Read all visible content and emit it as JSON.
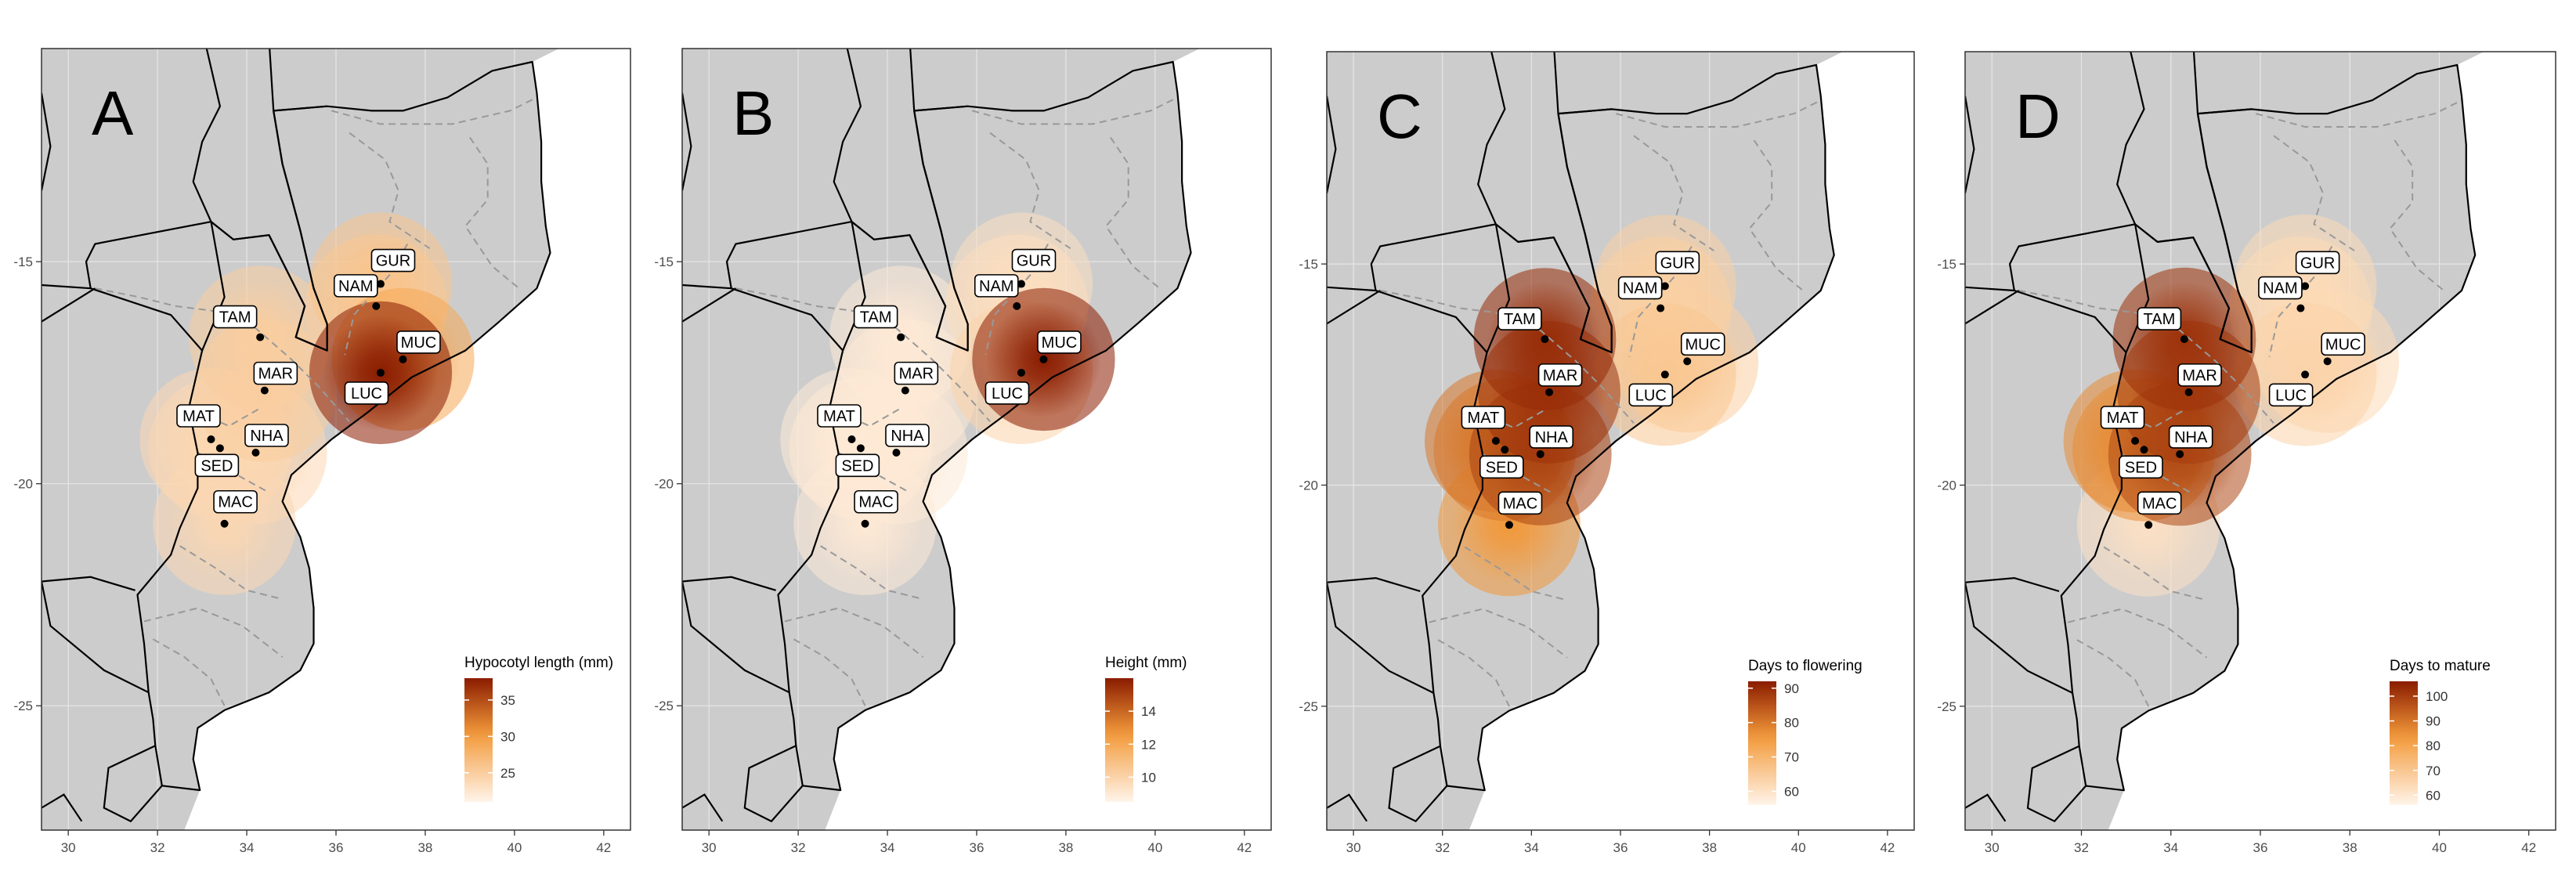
{
  "figure_title": "",
  "axes": {
    "x_ticks": [
      "30",
      "32",
      "34",
      "36",
      "38",
      "40",
      "42"
    ],
    "y_ticks": [
      "-15",
      "-20",
      "-25"
    ],
    "x_values": [
      30,
      32,
      34,
      36,
      38,
      40,
      42
    ],
    "y_values": [
      -15,
      -20,
      -25
    ],
    "lon_range": [
      29.4,
      42.6
    ],
    "lat_range": [
      -27.8,
      -10.2
    ]
  },
  "colors": {
    "land": "#cccccc",
    "border": "#000000",
    "river": "#999999",
    "grid": "#e6e6e6",
    "scale_low": "#fff4ea",
    "scale_mid": "#f39a3a",
    "scale_high": "#8a1c00",
    "site_point": "#000000"
  },
  "sites": [
    {
      "code": "GUR",
      "lon": 37.0,
      "lat": -15.5
    },
    {
      "code": "NAM",
      "lon": 36.9,
      "lat": -16.0
    },
    {
      "code": "TAM",
      "lon": 34.3,
      "lat": -16.7
    },
    {
      "code": "MUC",
      "lon": 37.5,
      "lat": -17.2
    },
    {
      "code": "MAR",
      "lon": 34.4,
      "lat": -17.9
    },
    {
      "code": "LUC",
      "lon": 37.0,
      "lat": -17.5
    },
    {
      "code": "MAT",
      "lon": 33.2,
      "lat": -19.0
    },
    {
      "code": "NHA",
      "lon": 34.2,
      "lat": -19.3
    },
    {
      "code": "SED",
      "lon": 33.4,
      "lat": -19.2
    },
    {
      "code": "MAC",
      "lon": 33.5,
      "lat": -20.9
    }
  ],
  "panels": [
    {
      "letter": "A",
      "legend_title": "Hypocotyl length (mm)",
      "legend_ticks": [
        "35",
        "30",
        "25"
      ],
      "legend_tick_values": [
        35,
        30,
        25
      ],
      "scale_range": [
        21,
        38
      ],
      "site_values": {
        "GUR": 26,
        "NAM": 25,
        "TAM": 25,
        "MUC": 29,
        "MAR": 25,
        "LUC": 38,
        "MAT": 24,
        "NHA": 24,
        "SED": 24,
        "MAC": 24
      }
    },
    {
      "letter": "B",
      "legend_title": "Height (mm)",
      "legend_ticks": [
        "14",
        "12",
        "10"
      ],
      "legend_tick_values": [
        14,
        12,
        10
      ],
      "scale_range": [
        8.5,
        16
      ],
      "site_values": {
        "GUR": 9.5,
        "NAM": 9.5,
        "TAM": 9,
        "MUC": 16,
        "MAR": 9,
        "LUC": 10,
        "MAT": 9,
        "NHA": 9,
        "SED": 9,
        "MAC": 9
      }
    },
    {
      "letter": "C",
      "legend_title": "Days to flowering",
      "legend_ticks": [
        "90",
        "80",
        "70",
        "60"
      ],
      "legend_tick_values": [
        90,
        80,
        70,
        60
      ],
      "scale_range": [
        56,
        92
      ],
      "site_values": {
        "GUR": 64,
        "NAM": 64,
        "TAM": 90,
        "MUC": 64,
        "MAR": 89,
        "LUC": 66,
        "MAT": 80,
        "NHA": 87,
        "SED": 80,
        "MAC": 76
      }
    },
    {
      "letter": "D",
      "legend_title": "Days to mature",
      "legend_ticks": [
        "100",
        "90",
        "80",
        "70",
        "60"
      ],
      "legend_tick_values": [
        100,
        90,
        80,
        70,
        60
      ],
      "scale_range": [
        56,
        106
      ],
      "site_values": {
        "GUR": 64,
        "NAM": 64,
        "TAM": 102,
        "MUC": 64,
        "MAR": 100,
        "LUC": 66,
        "MAT": 86,
        "NHA": 98,
        "SED": 86,
        "MAC": 62
      }
    }
  ]
}
